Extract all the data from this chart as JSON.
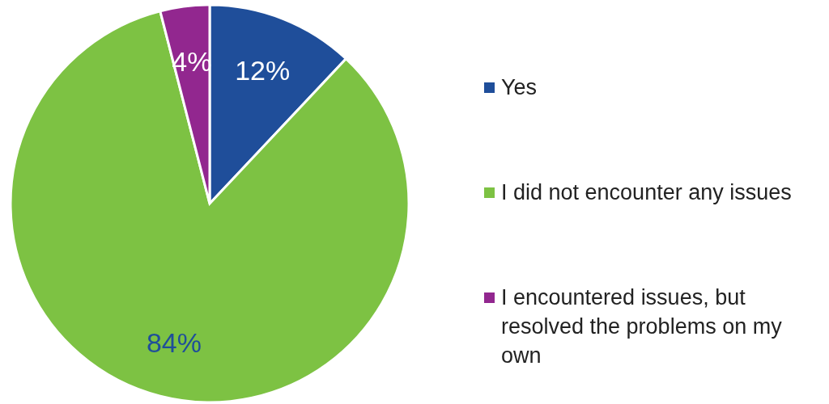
{
  "chart_data": {
    "type": "pie",
    "categories": [
      "Yes",
      "I did not encounter any issues",
      "I encountered issues, but resolved the problems on my own"
    ],
    "values": [
      12,
      84,
      4
    ],
    "colors": [
      "#1f4e9a",
      "#7dc243",
      "#92278f"
    ],
    "value_labels": [
      "12%",
      "84%",
      "4%"
    ],
    "legend": "right"
  }
}
